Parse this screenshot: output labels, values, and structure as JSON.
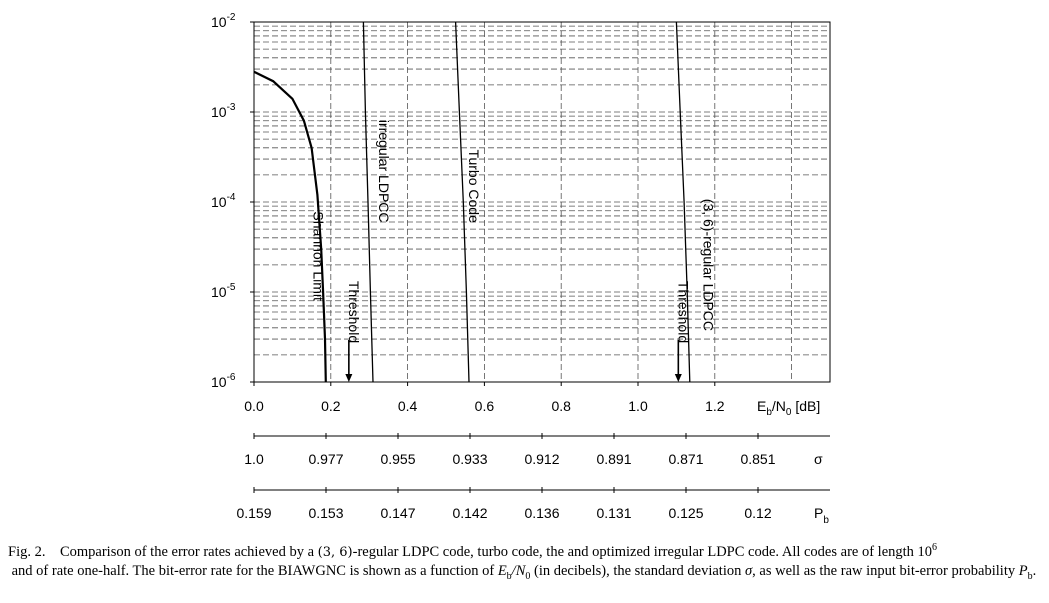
{
  "chart_data": {
    "type": "line",
    "xlabel": {
      "main": "E",
      "sub1": "b",
      "mid": "/N",
      "sub2": "0",
      "tail": " [dB]"
    },
    "x_ticks": [
      "0.0",
      "0.2",
      "0.4",
      "0.6",
      "0.8",
      "1.0",
      "1.2"
    ],
    "xlim": [
      0.0,
      1.5
    ],
    "y_scale": "log",
    "ylim": [
      1e-06,
      0.01
    ],
    "y_ticks": [
      {
        "base": "10",
        "exp": "-2"
      },
      {
        "base": "10",
        "exp": "-3"
      },
      {
        "base": "10",
        "exp": "-4"
      },
      {
        "base": "10",
        "exp": "-5"
      },
      {
        "base": "10",
        "exp": "-6"
      }
    ],
    "grid": "dashed, major and minor decades",
    "series": [
      {
        "name": "Shannon Limit",
        "x": [
          0.0,
          0.05,
          0.1,
          0.13,
          0.15,
          0.165,
          0.175,
          0.18,
          0.185,
          0.187
        ],
        "y": [
          0.0028,
          0.0022,
          0.0014,
          0.0008,
          0.0004,
          0.00012,
          3e-05,
          1e-05,
          3e-06,
          1e-06
        ],
        "style": "thick"
      },
      {
        "name": "irregular LDPCC",
        "x": [
          0.285,
          0.29,
          0.297,
          0.303,
          0.31
        ],
        "y": [
          0.01,
          0.001,
          0.0001,
          1e-05,
          1e-06
        ],
        "style": "thin"
      },
      {
        "name": "Turbo Code",
        "x": [
          0.525,
          0.535,
          0.545,
          0.553,
          0.56
        ],
        "y": [
          0.01,
          0.001,
          0.0001,
          1e-05,
          1e-06
        ],
        "style": "thin"
      },
      {
        "name": "(3, 6)-regular LDPCC",
        "x": [
          1.1,
          1.11,
          1.12,
          1.128,
          1.135
        ],
        "y": [
          0.01,
          0.001,
          0.0001,
          1e-05,
          1e-06
        ],
        "style": "thin"
      }
    ],
    "annotations": [
      {
        "text": "Threshold",
        "x": 0.247,
        "arrow_to_y": 1e-06
      },
      {
        "text": "Threshold",
        "x": 1.105,
        "arrow_to_y": 1e-06
      }
    ],
    "sigma_axis": {
      "symbol": "σ",
      "ticks": [
        "1.0",
        "0.977",
        "0.955",
        "0.933",
        "0.912",
        "0.891",
        "0.871",
        "0.851"
      ]
    },
    "pb_axis": {
      "symbol_main": "P",
      "symbol_sub": "b",
      "ticks": [
        "0.159",
        "0.153",
        "0.147",
        "0.142",
        "0.136",
        "0.131",
        "0.125",
        "0.12"
      ]
    }
  },
  "caption": {
    "prefix": "Fig. 2.    Comparison of the error rates achieved by a ",
    "code_math": "(3, 6)",
    "mid1": "-regular LDPC code, turbo code, the and optimized irregular LDPC code. All codes are of length ",
    "len_base": "10",
    "len_exp": "6",
    "line2_a": " and of rate one-half. The bit-error rate for the BIAWGNC is shown as a function of ",
    "ebn0_a": "E",
    "ebn0_b": "b",
    "ebn0_c": "/N",
    "ebn0_d": "0",
    "line2_b": " (in decibels), the standard deviation ",
    "sigma": "σ",
    "line2_c": ", as well as the raw input bit-error probability ",
    "pb_a": "P",
    "pb_b": "b",
    "end": "."
  }
}
